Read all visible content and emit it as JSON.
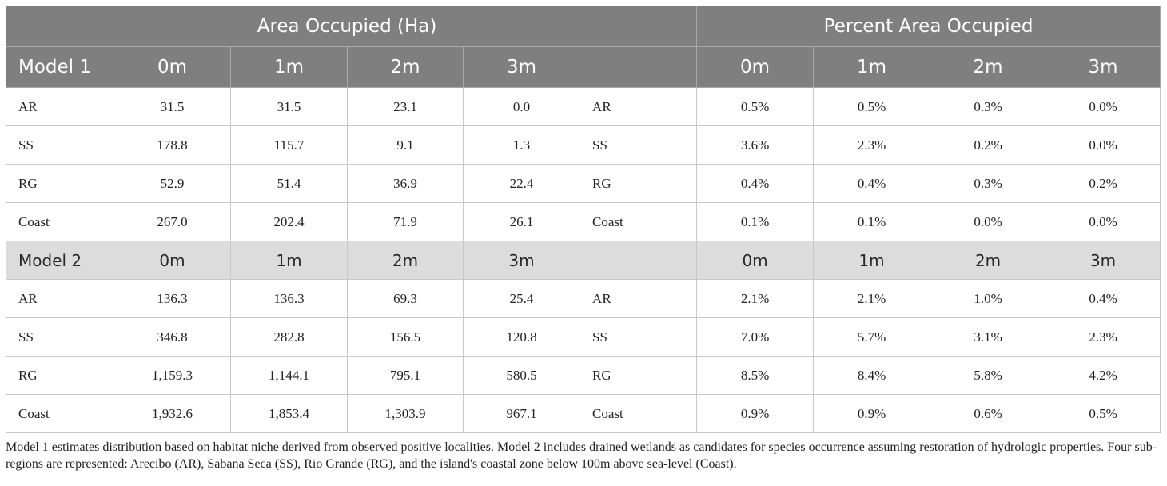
{
  "table": {
    "header": {
      "group_left": "Area Occupied (Ha)",
      "group_right": "Percent Area Occupied",
      "label": "Model 1",
      "columns": [
        "0m",
        "1m",
        "2m",
        "3m"
      ]
    },
    "model1": {
      "rows": [
        {
          "region": "AR",
          "area": [
            "31.5",
            "31.5",
            "23.1",
            "0.0"
          ],
          "region2": "AR",
          "percent": [
            "0.5%",
            "0.5%",
            "0.3%",
            "0.0%"
          ]
        },
        {
          "region": "SS",
          "area": [
            "178.8",
            "115.7",
            "9.1",
            "1.3"
          ],
          "region2": "SS",
          "percent": [
            "3.6%",
            "2.3%",
            "0.2%",
            "0.0%"
          ]
        },
        {
          "region": "RG",
          "area": [
            "52.9",
            "51.4",
            "36.9",
            "22.4"
          ],
          "region2": "RG",
          "percent": [
            "0.4%",
            "0.4%",
            "0.3%",
            "0.2%"
          ]
        },
        {
          "region": "Coast",
          "area": [
            "267.0",
            "202.4",
            "71.9",
            "26.1"
          ],
          "region2": "Coast",
          "percent": [
            "0.1%",
            "0.1%",
            "0.0%",
            "0.0%"
          ]
        }
      ]
    },
    "model2": {
      "label": "Model 2",
      "columns": [
        "0m",
        "1m",
        "2m",
        "3m"
      ],
      "rows": [
        {
          "region": "AR",
          "area": [
            "136.3",
            "136.3",
            "69.3",
            "25.4"
          ],
          "region2": "AR",
          "percent": [
            "2.1%",
            "2.1%",
            "1.0%",
            "0.4%"
          ]
        },
        {
          "region": "SS",
          "area": [
            "346.8",
            "282.8",
            "156.5",
            "120.8"
          ],
          "region2": "SS",
          "percent": [
            "7.0%",
            "5.7%",
            "3.1%",
            "2.3%"
          ]
        },
        {
          "region": "RG",
          "area": [
            "1,159.3",
            "1,144.1",
            "795.1",
            "580.5"
          ],
          "region2": "RG",
          "percent": [
            "8.5%",
            "8.4%",
            "5.8%",
            "4.2%"
          ]
        },
        {
          "region": "Coast",
          "area": [
            "1,932.6",
            "1,853.4",
            "1,303.9",
            "967.1"
          ],
          "region2": "Coast",
          "percent": [
            "0.9%",
            "0.9%",
            "0.6%",
            "0.5%"
          ]
        }
      ]
    }
  },
  "footnote": "Model 1 estimates distribution based on habitat niche derived from observed positive localities. Model 2 includes drained wetlands as candidates for species occurrence assuming restoration of hydrologic properties. Four sub-regions are represented: Arecibo (AR), Sabana Seca (SS), Rio Grande (RG), and the island's coastal zone below 100m above sea-level (Coast).",
  "colors": {
    "header_bg": "#7f7f7f",
    "subheader_bg": "#dcdcdc",
    "border": "#c8c8c8",
    "text": "#222222"
  }
}
